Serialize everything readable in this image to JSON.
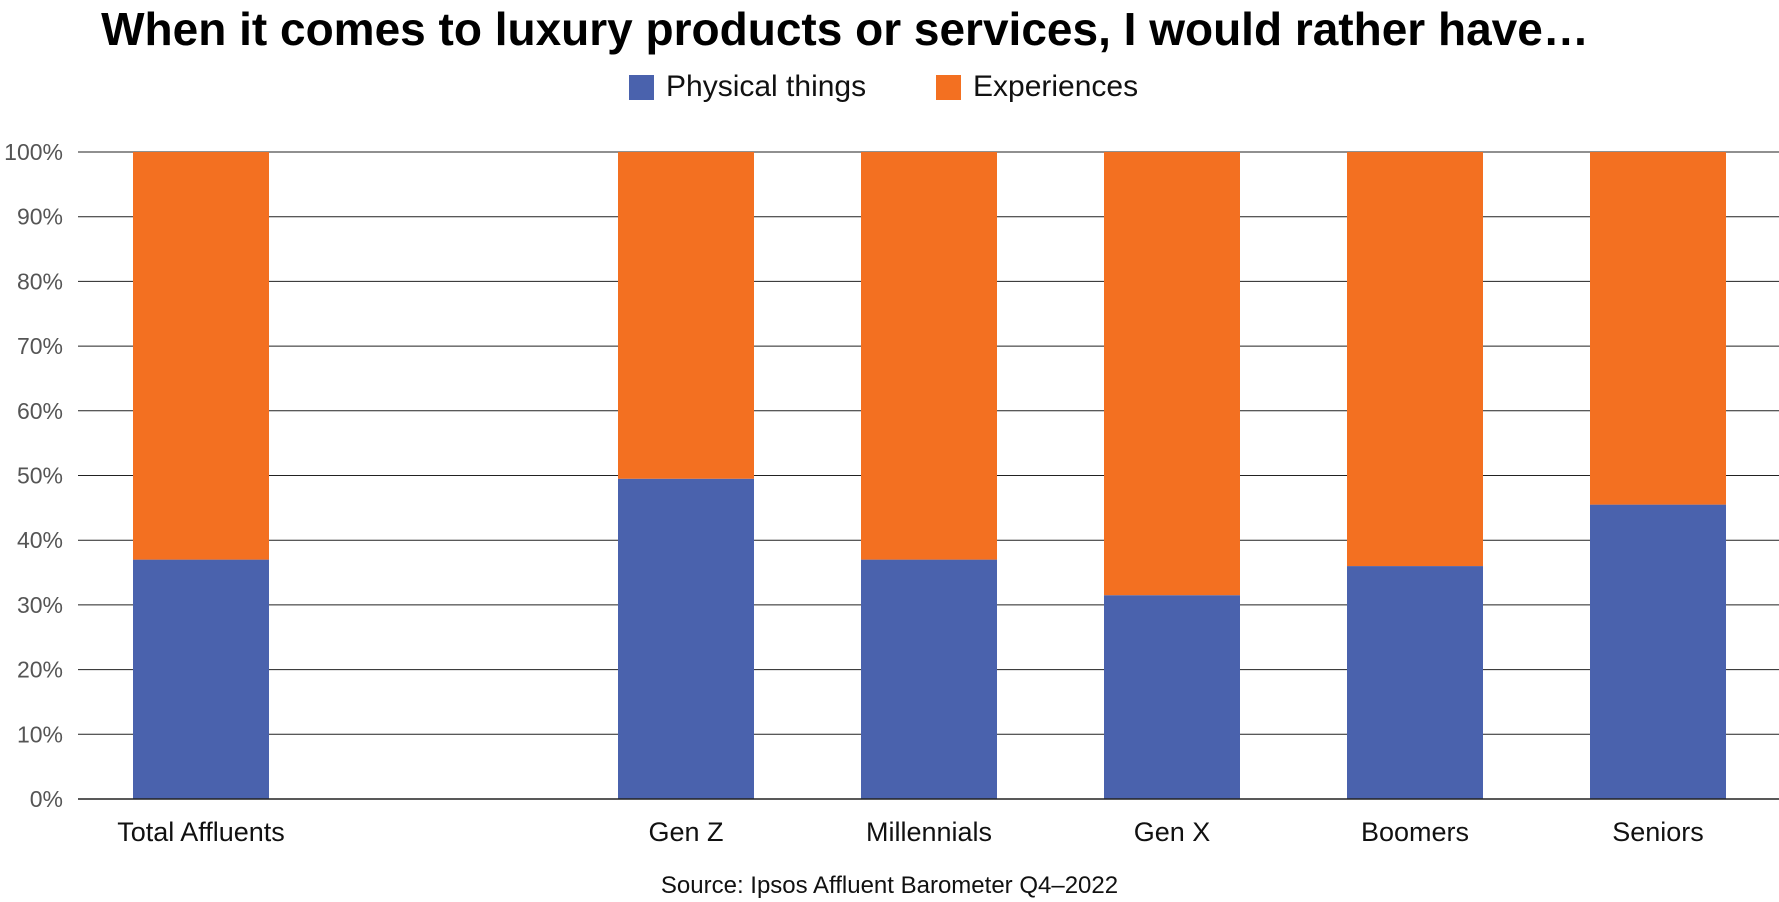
{
  "chart_data": {
    "type": "bar",
    "stacked": true,
    "title": "When it comes to luxury products or services, I would rather have…",
    "source": "Source: Ipsos Affluent Barometer Q4–2022",
    "categories": [
      "Total Affluents",
      "Gen Z",
      "Millennials",
      "Gen X",
      "Boomers",
      "Seniors"
    ],
    "series": [
      {
        "name": "Physical things",
        "color": "#4a62ad",
        "values": [
          37,
          49.5,
          37,
          31.5,
          36,
          45.5
        ]
      },
      {
        "name": "Experiences",
        "color": "#f37021",
        "values": [
          63,
          50.5,
          63,
          68.5,
          64,
          54.5
        ]
      }
    ],
    "y_ticks": [
      "0%",
      "10%",
      "20%",
      "30%",
      "40%",
      "50%",
      "60%",
      "70%",
      "80%",
      "90%",
      "100%"
    ],
    "ylim": [
      0,
      100
    ],
    "grid": true,
    "legend_position": "top-center",
    "xlabel": "",
    "ylabel": ""
  }
}
